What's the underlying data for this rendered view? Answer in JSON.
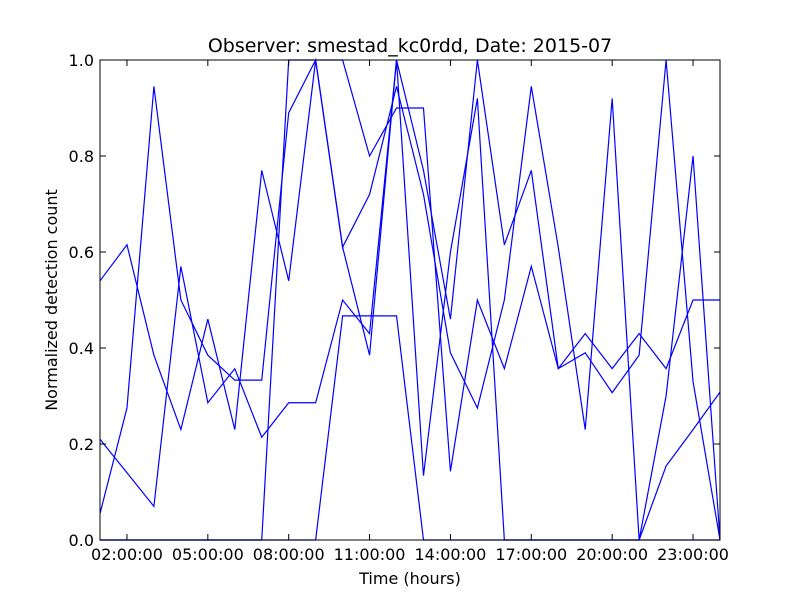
{
  "chart_data": {
    "type": "line",
    "title": "Observer: smestad_kc0rdd, Date: 2015-07",
    "xlabel": "Time (hours)",
    "ylabel": "Normalized detection count",
    "x_unit": "hours",
    "xlim": [
      1,
      24
    ],
    "ylim": [
      0.0,
      1.0
    ],
    "x_ticks": [
      {
        "value": 2,
        "label": "02:00:00"
      },
      {
        "value": 5,
        "label": "05:00:00"
      },
      {
        "value": 8,
        "label": "08:00:00"
      },
      {
        "value": 11,
        "label": "11:00:00"
      },
      {
        "value": 14,
        "label": "14:00:00"
      },
      {
        "value": 17,
        "label": "17:00:00"
      },
      {
        "value": 20,
        "label": "20:00:00"
      },
      {
        "value": 23,
        "label": "23:00:00"
      }
    ],
    "y_ticks": [
      {
        "value": 0.0,
        "label": "0.0"
      },
      {
        "value": 0.2,
        "label": "0.2"
      },
      {
        "value": 0.4,
        "label": "0.4"
      },
      {
        "value": 0.6,
        "label": "0.6"
      },
      {
        "value": 0.8,
        "label": "0.8"
      },
      {
        "value": 1.0,
        "label": "1.0"
      }
    ],
    "grid": false,
    "legend": "none",
    "line_color": "#0000ff",
    "series": [
      {
        "x": [
          1,
          2,
          3,
          4,
          5,
          6,
          7,
          8,
          9,
          10,
          11,
          12,
          13,
          14,
          15,
          16,
          17,
          18,
          19,
          20,
          21,
          22,
          23,
          24
        ],
        "y": [
          0.54,
          0.615,
          0.385,
          0.23,
          0.46,
          0.23,
          0.77,
          0.54,
          1.0,
          0.61,
          0.385,
          1.0,
          0.77,
          0.46,
          1.0,
          0.615,
          0.77,
          0.357,
          0.43,
          0.357,
          0.43,
          0.357,
          0.5,
          0.5
        ]
      },
      {
        "x": [
          1,
          2,
          3,
          4,
          5,
          6,
          7,
          8,
          9,
          10,
          11,
          12,
          13,
          14,
          15,
          16,
          17,
          18,
          19,
          20,
          21,
          22,
          23,
          24
        ],
        "y": [
          0.21,
          0.14,
          0.07,
          0.57,
          0.286,
          0.357,
          0.214,
          0.286,
          0.286,
          0.5,
          0.43,
          1.0,
          0.134,
          0.6,
          0.92,
          0.0,
          0.0,
          0.0,
          0.0,
          0.0,
          0.0,
          0.3,
          0.8,
          0.0
        ]
      },
      {
        "x": [
          1,
          2,
          3,
          4,
          5,
          6,
          7,
          8,
          9,
          10,
          11,
          12,
          13,
          14,
          15,
          16,
          17,
          18,
          19,
          20,
          21,
          22,
          23,
          24
        ],
        "y": [
          0.055,
          0.275,
          0.945,
          0.5,
          0.385,
          0.333,
          0.333,
          0.89,
          1.0,
          0.61,
          0.72,
          0.945,
          0.72,
          0.39,
          0.275,
          0.5,
          0.945,
          0.61,
          0.23,
          0.92,
          0.0,
          0.0,
          0.0,
          0.0
        ]
      },
      {
        "x": [
          1,
          2,
          3,
          4,
          5,
          6,
          7,
          8,
          9,
          10,
          11,
          12,
          13,
          14,
          15,
          16,
          17,
          18,
          19,
          20,
          21,
          22,
          23,
          24
        ],
        "y": [
          0.0,
          0.0,
          0.0,
          0.0,
          0.0,
          0.0,
          0.0,
          1.0,
          1.0,
          1.0,
          0.8,
          0.9,
          0.9,
          0.143,
          0.5,
          0.357,
          0.57,
          0.357,
          0.39,
          0.307,
          0.385,
          1.0,
          0.33,
          0.0
        ]
      },
      {
        "x": [
          1,
          2,
          3,
          4,
          5,
          6,
          7,
          8,
          9,
          10,
          11,
          12,
          13,
          14,
          15,
          16,
          17,
          18,
          19,
          20,
          21,
          22,
          23,
          24
        ],
        "y": [
          0.0,
          0.0,
          0.0,
          0.0,
          0.0,
          0.0,
          0.0,
          0.0,
          0.0,
          0.467,
          0.467,
          0.467,
          0.0,
          0.0,
          0.0,
          0.0,
          0.0,
          0.0,
          0.0,
          0.0,
          0.0,
          0.154,
          0.23,
          0.308
        ]
      }
    ]
  }
}
